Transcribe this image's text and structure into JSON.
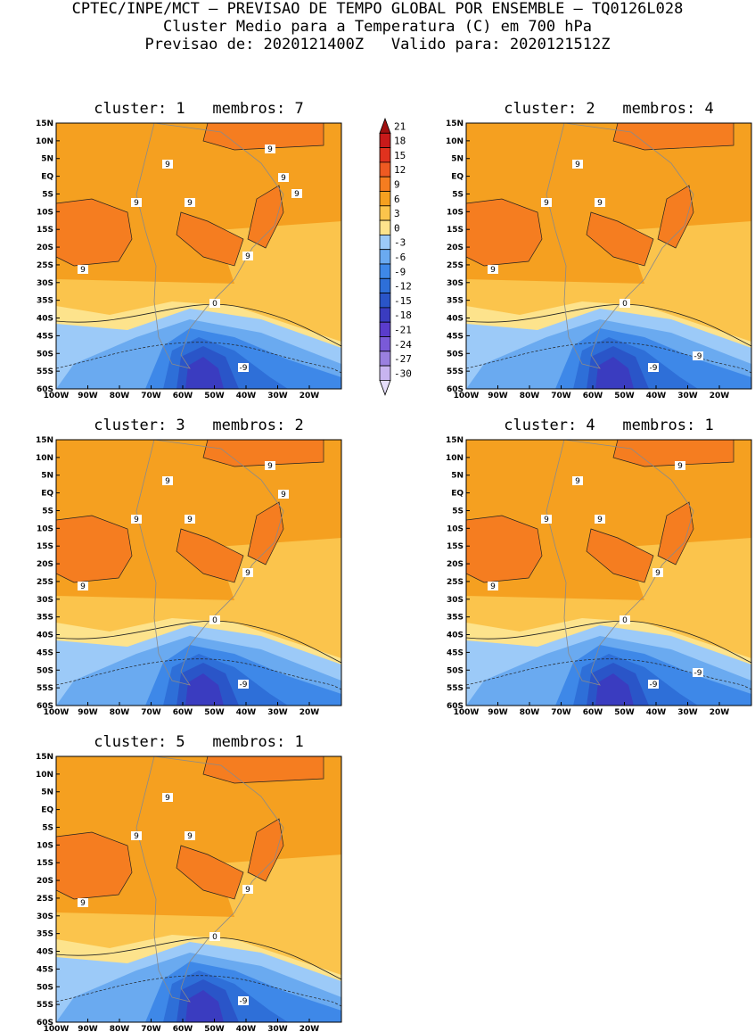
{
  "header": {
    "line1": "CPTEC/INPE/MCT – PREVISAO DE TEMPO GLOBAL POR ENSEMBLE – TQ0126L028",
    "line2": "Cluster Medio para a Temperatura (C) em 700 hPa",
    "line3": "Previsao de: 2020121400Z   Valido para: 2020121512Z"
  },
  "axes": {
    "lat_labels": [
      "15N",
      "10N",
      "5N",
      "EQ",
      "5S",
      "10S",
      "15S",
      "20S",
      "25S",
      "30S",
      "35S",
      "40S",
      "45S",
      "50S",
      "55S",
      "60S"
    ],
    "lon_labels": [
      "100W",
      "90W",
      "80W",
      "70W",
      "60W",
      "50W",
      "40W",
      "30W",
      "20W"
    ]
  },
  "colorbar": {
    "labels": [
      "21",
      "18",
      "15",
      "12",
      "9",
      "6",
      "3",
      "0",
      "-3",
      "-6",
      "-9",
      "-12",
      "-15",
      "-18",
      "-21",
      "-24",
      "-27",
      "-30"
    ],
    "colors": [
      "#a01010",
      "#c81a1a",
      "#e0321e",
      "#ee5a22",
      "#f57d20",
      "#f5a020",
      "#fbc44c",
      "#fde38c",
      "#9ccaf8",
      "#6aaaf0",
      "#3e88e8",
      "#2e6fd8",
      "#2a55c8",
      "#3a3cc0",
      "#5a3ccc",
      "#7a5ad8",
      "#9a80e0",
      "#c8b4f0",
      "#e6defa"
    ]
  },
  "panels": [
    {
      "title": "cluster: 1   membros: 7",
      "labels_9": [
        "9",
        "9",
        "9",
        "9",
        "9",
        "9",
        "9",
        "9"
      ],
      "label_0": "0",
      "labels_neg9": [
        "-9"
      ]
    },
    {
      "title": "cluster: 2   membros: 4",
      "labels_9": [
        "9",
        "9",
        "9",
        "9"
      ],
      "label_0": "0",
      "labels_neg9": [
        "-9",
        "-9"
      ]
    },
    {
      "title": "cluster: 3   membros: 2",
      "labels_9": [
        "9",
        "9",
        "9",
        "9",
        "9",
        "9",
        "9"
      ],
      "label_0": "0",
      "labels_neg9": [
        "-9"
      ]
    },
    {
      "title": "cluster: 4   membros: 1",
      "labels_9": [
        "9",
        "9",
        "9",
        "9",
        "9",
        "9"
      ],
      "label_0": "0",
      "labels_neg9": [
        "-9",
        "-9"
      ]
    },
    {
      "title": "cluster: 5   membros: 1",
      "labels_9": [
        "9",
        "9",
        "9",
        "9",
        "9"
      ],
      "label_0": "0",
      "labels_neg9": [
        "-9"
      ]
    }
  ]
}
